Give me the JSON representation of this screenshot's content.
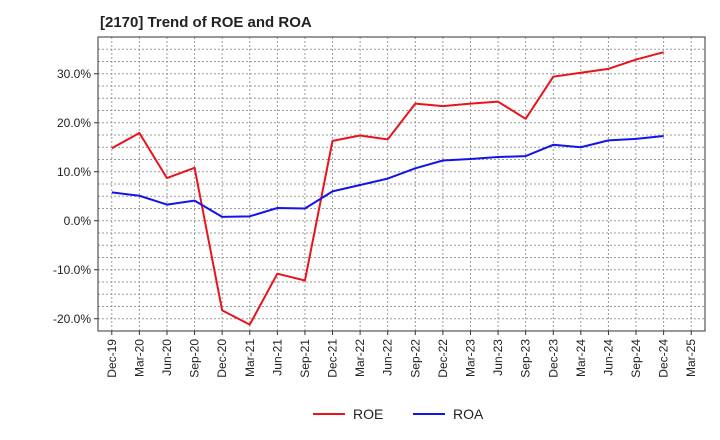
{
  "chart_data": {
    "type": "line",
    "title": "[2170]  Trend of ROE and ROA",
    "xlabel": "",
    "ylabel": "",
    "categories": [
      "Dec-19",
      "Mar-20",
      "Jun-20",
      "Sep-20",
      "Dec-20",
      "Mar-21",
      "Jun-21",
      "Sep-21",
      "Dec-21",
      "Mar-22",
      "Jun-22",
      "Sep-22",
      "Dec-22",
      "Mar-23",
      "Jun-23",
      "Sep-23",
      "Dec-23",
      "Mar-24",
      "Jun-24",
      "Sep-24",
      "Dec-24",
      "Mar-25"
    ],
    "yticks": [
      -20,
      -10,
      0,
      10,
      20,
      30
    ],
    "ytick_labels": [
      "-20.0%",
      "-10.0%",
      "0.0%",
      "10.0%",
      "20.0%",
      "30.0%"
    ],
    "ylim": [
      -22.5,
      37.5
    ],
    "grid": true,
    "legend_position": "bottom",
    "series": [
      {
        "name": "ROE",
        "color": "#e8141b",
        "values": [
          14.8,
          17.9,
          8.7,
          10.8,
          -18.3,
          -21.2,
          -10.8,
          -12.2,
          16.3,
          17.4,
          16.6,
          23.9,
          23.4,
          23.9,
          24.3,
          20.8,
          29.4,
          30.2,
          31.0,
          32.9,
          34.4,
          null
        ]
      },
      {
        "name": "ROA",
        "color": "#1414e6",
        "values": [
          5.8,
          5.1,
          3.3,
          4.1,
          0.8,
          0.9,
          2.6,
          2.5,
          6.0,
          7.3,
          8.6,
          10.7,
          12.3,
          12.6,
          13.0,
          13.2,
          15.5,
          15.0,
          16.4,
          16.7,
          17.3,
          null
        ]
      }
    ]
  }
}
